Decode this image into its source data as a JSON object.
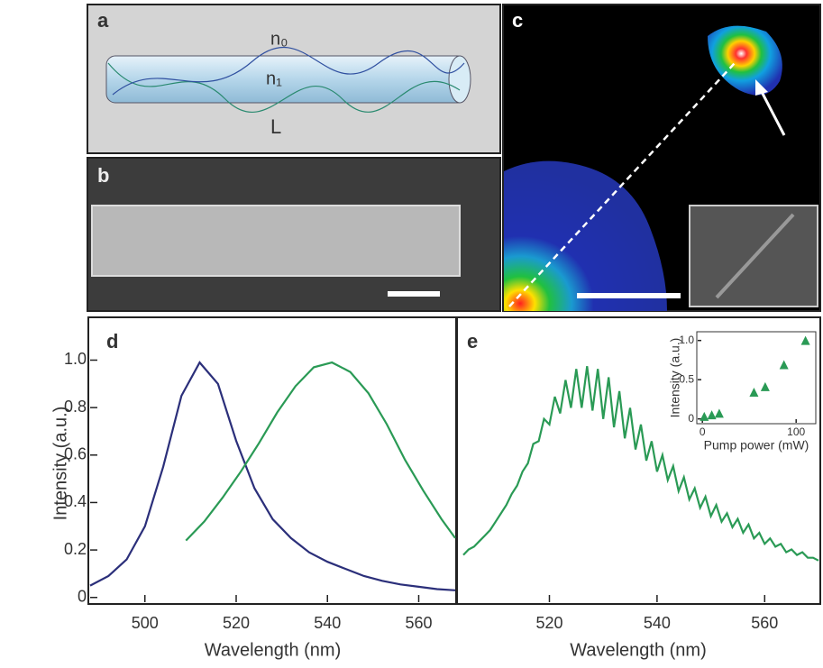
{
  "panels": [
    {
      "label": "a",
      "texts": [
        "n₀",
        "n₁",
        "L"
      ]
    },
    {
      "label": "b"
    },
    {
      "label": "c"
    }
  ],
  "chart_data": [
    {
      "type": "line",
      "panel": "d",
      "xlabel": "Wavelength (nm)",
      "ylabel": "Intensity (a.u.)",
      "xlim": [
        488,
        568
      ],
      "ylim": [
        -0.02,
        1.15
      ],
      "xticks": [
        500,
        520,
        540,
        560
      ],
      "yticks": [
        0,
        0.2,
        0.4,
        0.6,
        0.8,
        {
          "value": 1,
          "label": "1.0"
        }
      ],
      "series": [
        {
          "color": "#2b2f7a",
          "x": [
            488,
            492,
            496,
            500,
            504,
            508,
            512,
            516,
            520,
            524,
            528,
            532,
            536,
            540,
            544,
            548,
            552,
            556,
            560,
            564,
            568
          ],
          "values": [
            0.05,
            0.09,
            0.16,
            0.3,
            0.55,
            0.85,
            0.99,
            0.9,
            0.66,
            0.46,
            0.33,
            0.25,
            0.19,
            0.15,
            0.12,
            0.09,
            0.07,
            0.055,
            0.045,
            0.035,
            0.03
          ]
        },
        {
          "color": "#2a9a55",
          "x": [
            509,
            513,
            517,
            521,
            525,
            529,
            533,
            537,
            541,
            545,
            549,
            553,
            557,
            561,
            565,
            568
          ],
          "values": [
            0.24,
            0.32,
            0.42,
            0.53,
            0.65,
            0.78,
            0.89,
            0.97,
            0.99,
            0.95,
            0.86,
            0.73,
            0.58,
            0.45,
            0.33,
            0.25
          ]
        }
      ]
    },
    {
      "type": "line",
      "panel": "e",
      "xlabel": "Wavelength (nm)",
      "xlim": [
        503,
        570
      ],
      "ylim": [
        -0.02,
        0.98
      ],
      "xticks": [
        520,
        540,
        560
      ],
      "series": [
        {
          "color": "#2a9a55",
          "x": [
            504,
            505,
            506,
            507,
            508,
            509,
            510,
            511,
            512,
            513,
            514,
            515,
            516,
            517,
            518,
            519,
            520,
            521,
            522,
            523,
            524,
            525,
            526,
            527,
            528,
            529,
            530,
            531,
            532,
            533,
            534,
            535,
            536,
            537,
            538,
            539,
            540,
            541,
            542,
            543,
            544,
            545,
            546,
            547,
            548,
            549,
            550,
            551,
            552,
            553,
            554,
            555,
            556,
            557,
            558,
            559,
            560,
            561,
            562,
            563,
            564,
            565,
            566,
            567,
            568,
            569,
            570
          ],
          "values": [
            0.15,
            0.17,
            0.18,
            0.2,
            0.22,
            0.24,
            0.27,
            0.3,
            0.33,
            0.37,
            0.4,
            0.45,
            0.48,
            0.55,
            0.56,
            0.64,
            0.62,
            0.72,
            0.66,
            0.78,
            0.68,
            0.82,
            0.68,
            0.83,
            0.67,
            0.82,
            0.64,
            0.79,
            0.61,
            0.74,
            0.57,
            0.68,
            0.53,
            0.62,
            0.49,
            0.56,
            0.45,
            0.51,
            0.42,
            0.47,
            0.38,
            0.43,
            0.35,
            0.39,
            0.32,
            0.36,
            0.29,
            0.33,
            0.27,
            0.3,
            0.25,
            0.28,
            0.23,
            0.26,
            0.21,
            0.23,
            0.19,
            0.21,
            0.18,
            0.19,
            0.16,
            0.17,
            0.15,
            0.16,
            0.14,
            0.14,
            0.13
          ]
        }
      ]
    },
    {
      "type": "scatter",
      "xlabel": "Pump power (mW)",
      "ylabel": "Intensity (a.u.)",
      "xlim": [
        -5,
        120
      ],
      "ylim": [
        -0.05,
        1.1
      ],
      "xticks": [
        0,
        100
      ],
      "yticks": [
        0,
        0.5,
        {
          "value": 1,
          "label": "1.0"
        }
      ],
      "series": [
        {
          "color": "#2a9a55",
          "x": [
            2,
            10,
            18,
            55,
            67,
            87,
            110
          ],
          "values": [
            0.02,
            0.04,
            0.06,
            0.33,
            0.4,
            0.68,
            0.99
          ]
        }
      ]
    }
  ]
}
